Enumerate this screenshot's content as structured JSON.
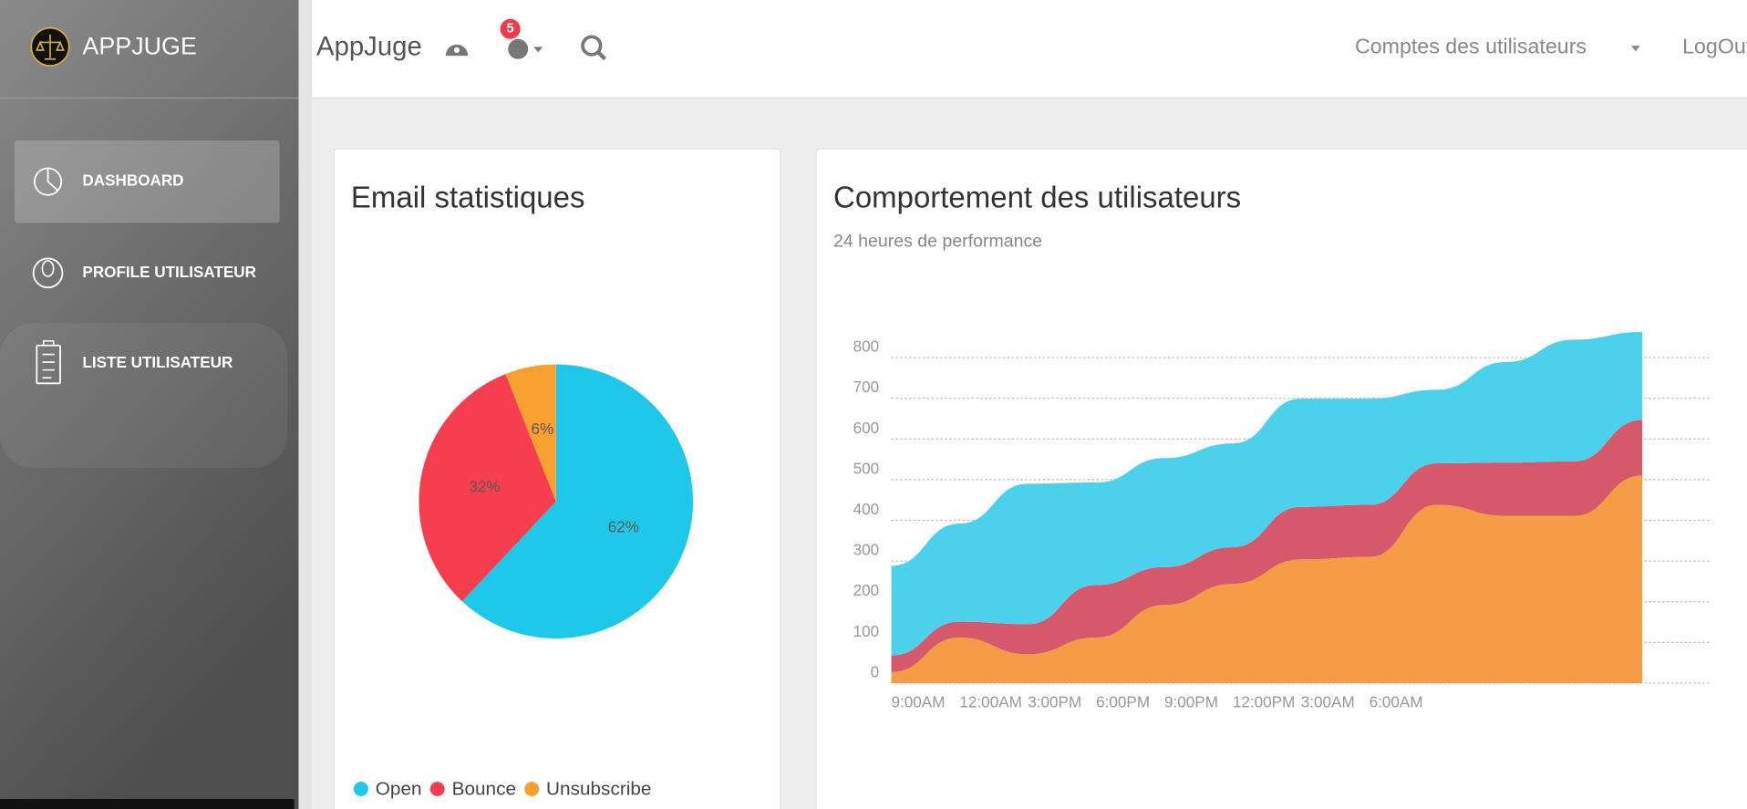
{
  "sidebar": {
    "brand": "APPJUGE",
    "menu": [
      "DASHBOARD",
      "PROFILE UTILISATEUR",
      "LISTE UTILISATEUR"
    ]
  },
  "navbar": {
    "brand": "AppJuge",
    "notification_count": 5,
    "account_menu": "Comptes des utilisateurs",
    "logout": "LogOut"
  },
  "chart_data": [
    {
      "type": "pie",
      "title": "Email statistiques",
      "categories": [
        "Open",
        "Bounce",
        "Unsubscribe"
      ],
      "values": [
        62,
        32,
        6
      ],
      "value_labels": [
        "62%",
        "32%",
        "6%"
      ],
      "colors": [
        "#1fc8e8",
        "#f73e4e",
        "#f9a030"
      ],
      "legend": "bottom"
    },
    {
      "type": "area",
      "stacked": true,
      "title": "Comportement des utilisateurs",
      "subtitle": "24 heures de performance",
      "categories": [
        "9:00AM",
        "12:00AM",
        "3:00PM",
        "6:00PM",
        "9:00PM",
        "12:00PM",
        "3:00AM",
        "6:00AM",
        null,
        null,
        null,
        null
      ],
      "series": [
        {
          "color": "#f59a40",
          "values": [
            27,
            112,
            71,
            112,
            192,
            244,
            304,
            310,
            438,
            411,
            411,
            510
          ]
        },
        {
          "color": "#d55668",
          "values": [
            41,
            39,
            74,
            129,
            93,
            90,
            129,
            128,
            102,
            131,
            134,
            137
          ]
        },
        {
          "color": "#48d0ec",
          "values": [
            220,
            241,
            345,
            252,
            268,
            255,
            266,
            261,
            181,
            247,
            299,
            216
          ]
        }
      ],
      "ylim": [
        0,
        860
      ],
      "yticks": [
        0,
        100,
        200,
        300,
        400,
        500,
        600,
        700,
        800
      ],
      "grid": true
    }
  ]
}
